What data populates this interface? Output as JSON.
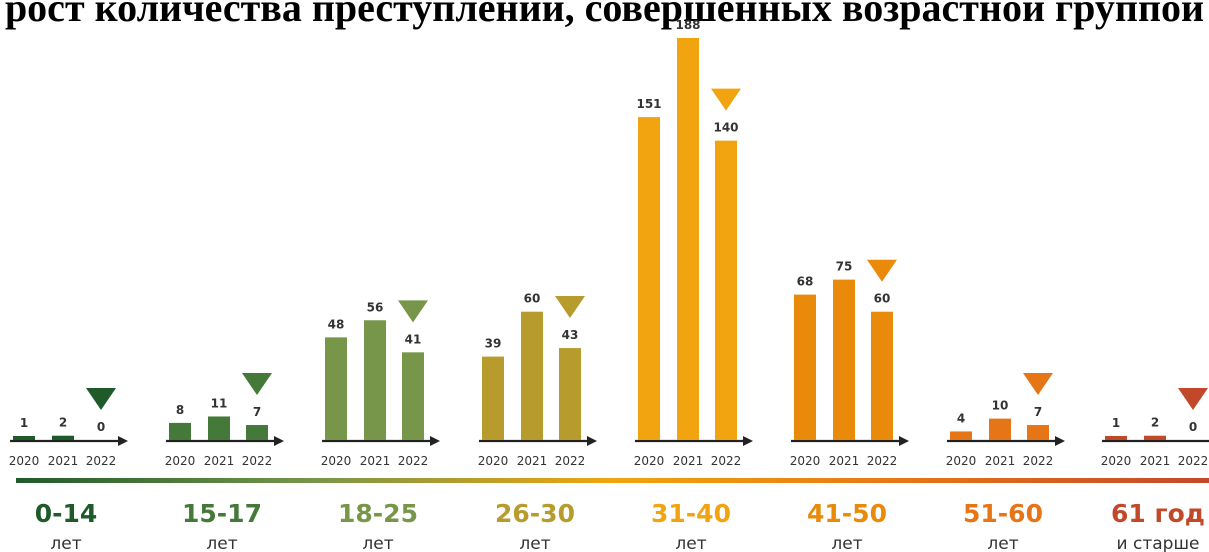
{
  "title": "рост количества преступлений, совершенных возрастной группой",
  "chart_data": {
    "type": "bar",
    "series_years": [
      "2020",
      "2021",
      "2022"
    ],
    "trend_marker": "down-triangle",
    "groups": [
      {
        "label": "0-14",
        "unit": "лет",
        "color": "#1f5a2a",
        "values": [
          1,
          2,
          0
        ]
      },
      {
        "label": "15-17",
        "unit": "лет",
        "color": "#44793a",
        "values": [
          8,
          11,
          7
        ]
      },
      {
        "label": "18-25",
        "unit": "лет",
        "color": "#77964a",
        "values": [
          48,
          56,
          41
        ]
      },
      {
        "label": "26-30",
        "unit": "лет",
        "color": "#b79b2c",
        "values": [
          39,
          60,
          43
        ]
      },
      {
        "label": "31-40",
        "unit": "лет",
        "color": "#f1a40f",
        "values": [
          151,
          188,
          140
        ]
      },
      {
        "label": "41-50",
        "unit": "лет",
        "color": "#ea8a0a",
        "values": [
          68,
          75,
          60
        ]
      },
      {
        "label": "51-60",
        "unit": "лет",
        "color": "#e57516",
        "values": [
          4,
          10,
          7
        ]
      },
      {
        "label": "61 год",
        "unit": "и старше",
        "color": "#c2482a",
        "values": [
          1,
          2,
          0
        ]
      }
    ],
    "ylim": [
      0,
      188
    ],
    "gradient_colors": [
      "#1f5a2a",
      "#77964a",
      "#f1a40f",
      "#e57516",
      "#c2482a"
    ]
  }
}
